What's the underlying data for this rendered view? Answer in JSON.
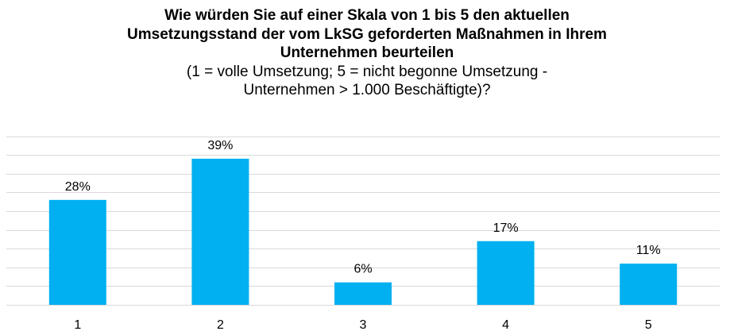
{
  "chart_data": {
    "type": "bar",
    "title_lines": [
      "Wie würden Sie auf einer Skala von 1 bis 5 den aktuellen",
      "Umsetzungsstand der vom LkSG geforderten Maßnahmen in Ihrem",
      "Unternehmen beurteilen"
    ],
    "subtitle_lines": [
      "(1 = volle Umsetzung;  5 = nicht begonne Umsetzung  -",
      "Unternehmen  > 1.000 Beschäftigte)?"
    ],
    "categories": [
      "1",
      "2",
      "3",
      "4",
      "5"
    ],
    "values": [
      28,
      39,
      6,
      17,
      11
    ],
    "value_labels": [
      "28%",
      "39%",
      "6%",
      "17%",
      "11%"
    ],
    "ylim": [
      0,
      45
    ],
    "grid": true,
    "bar_color": "#00B0F0",
    "grid_color": "#D9D9D9",
    "axis_color": "#D9D9D9"
  }
}
